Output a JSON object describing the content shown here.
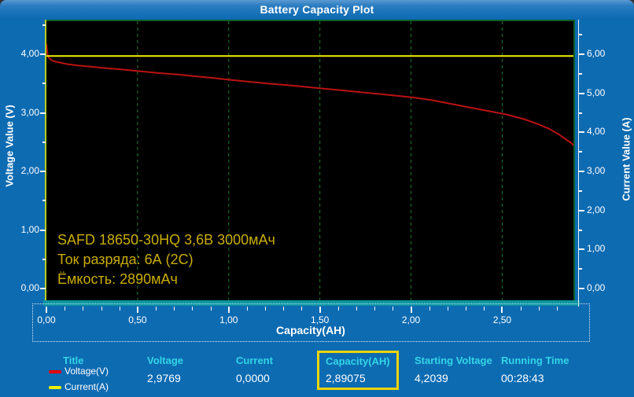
{
  "title": "Battery Capacity Plot",
  "chart_data": {
    "type": "line",
    "title": "Battery Capacity Plot",
    "xlabel": "Capacity(AH)",
    "ylabel_left": "Voltage Value (V)",
    "ylabel_right": "Current Value (A)",
    "xlim": [
      0,
      2.89075
    ],
    "ylim_left": [
      -0.2,
      4.59
    ],
    "ylim_right": [
      -0.3,
      6.89
    ],
    "grid_color": "#1c7a2c",
    "plot_bg": "#000000",
    "x_major_ticks": [
      {
        "v": 0,
        "label": "0,00"
      },
      {
        "v": 0.5,
        "label": "0,50"
      },
      {
        "v": 1.0,
        "label": "1,00"
      },
      {
        "v": 1.5,
        "label": "1,50"
      },
      {
        "v": 2.0,
        "label": "2,00"
      },
      {
        "v": 2.5,
        "label": "2,50"
      }
    ],
    "x_minor_step": 0.1,
    "left_ticks": [
      {
        "v": 0,
        "label": "0,00"
      },
      {
        "v": 1,
        "label": "1,00"
      },
      {
        "v": 2,
        "label": "2,00"
      },
      {
        "v": 3,
        "label": "3,00"
      },
      {
        "v": 4,
        "label": "4,00"
      }
    ],
    "left_minor_step": 0.5,
    "right_ticks": [
      {
        "v": 0,
        "label": "0,00"
      },
      {
        "v": 1,
        "label": "1,00"
      },
      {
        "v": 2,
        "label": "2,00"
      },
      {
        "v": 3,
        "label": "3,00"
      },
      {
        "v": 4,
        "label": "4,00"
      },
      {
        "v": 5,
        "label": "5,00"
      },
      {
        "v": 6,
        "label": "6,00"
      }
    ],
    "right_minor_step": 0.5,
    "series": [
      {
        "name": "Voltage(V)",
        "axis": "left",
        "color": "#bb1212",
        "points": [
          [
            0,
            4.204
          ],
          [
            0.004,
            4.08
          ],
          [
            0.008,
            4.0
          ],
          [
            0.015,
            3.96
          ],
          [
            0.03,
            3.92
          ],
          [
            0.05,
            3.9
          ],
          [
            0.08,
            3.88
          ],
          [
            0.12,
            3.855
          ],
          [
            0.17,
            3.835
          ],
          [
            0.24,
            3.815
          ],
          [
            0.32,
            3.79
          ],
          [
            0.42,
            3.765
          ],
          [
            0.52,
            3.735
          ],
          [
            0.62,
            3.705
          ],
          [
            0.72,
            3.68
          ],
          [
            0.82,
            3.65
          ],
          [
            0.92,
            3.62
          ],
          [
            1.02,
            3.585
          ],
          [
            1.12,
            3.555
          ],
          [
            1.22,
            3.525
          ],
          [
            1.32,
            3.5
          ],
          [
            1.42,
            3.47
          ],
          [
            1.52,
            3.44
          ],
          [
            1.62,
            3.41
          ],
          [
            1.72,
            3.38
          ],
          [
            1.82,
            3.35
          ],
          [
            1.92,
            3.32
          ],
          [
            2.02,
            3.285
          ],
          [
            2.12,
            3.24
          ],
          [
            2.22,
            3.18
          ],
          [
            2.32,
            3.12
          ],
          [
            2.42,
            3.06
          ],
          [
            2.52,
            3.0
          ],
          [
            2.62,
            2.92
          ],
          [
            2.7,
            2.83
          ],
          [
            2.76,
            2.75
          ],
          [
            2.81,
            2.66
          ],
          [
            2.85,
            2.57
          ],
          [
            2.88,
            2.51
          ],
          [
            2.89075,
            2.47
          ]
        ]
      },
      {
        "name": "Current(A)",
        "axis": "right",
        "color": "#f2ef00",
        "points": [
          [
            0,
            6.0
          ],
          [
            2.89075,
            6.0
          ]
        ]
      }
    ],
    "annotation": [
      "SAFD 18650-30HQ 3,6В 3000мАч",
      "Ток разряда: 6А (2С)",
      "Ёмкость: 2890мАч"
    ]
  },
  "status": {
    "title_header": "Title",
    "legend": [
      {
        "label": "Voltage(V)",
        "color": "#e60000"
      },
      {
        "label": "Current(A)",
        "color": "#f2ef00"
      }
    ],
    "columns": {
      "voltage": {
        "header": "Voltage",
        "value": "2,9769"
      },
      "current": {
        "header": "Current",
        "value": "0,0000"
      },
      "capacity": {
        "header": "Capacity(AH)",
        "value": "2,89075"
      },
      "start_v": {
        "header": "Starting Voltage",
        "value": "4,2039"
      },
      "run_time": {
        "header": "Running Time",
        "value": "00:28:43"
      }
    }
  },
  "colors": {
    "window_bg": "#0d6bb2",
    "header_cyan": "#33d6e6",
    "annotation_yellow": "#c9ad06",
    "highlight_box": "#eed402",
    "grid_green": "#1c7a2c",
    "axis_line_yellowgreen": "#b8cc1e",
    "teal_strip": "#0b97a2"
  }
}
